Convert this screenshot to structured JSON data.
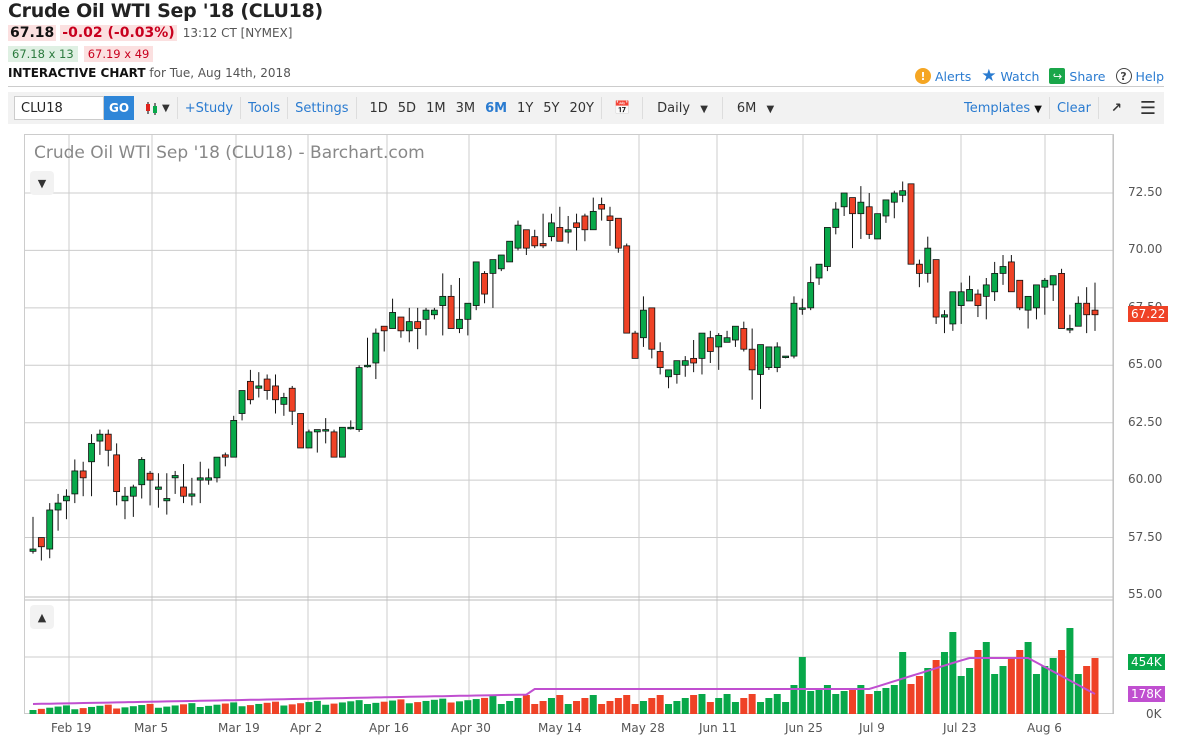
{
  "header": {
    "title": "Crude Oil WTI Sep '18 (CLU18)",
    "last": "67.18",
    "change": "-0.02 (-0.03%)",
    "time": "13:12 CT [NYMEX]",
    "bid": "67.18 x 13",
    "ask": "67.19 x 49",
    "chart_label": "INTERACTIVE CHART",
    "chart_for": "for Tue, Aug 14th, 2018"
  },
  "actions": {
    "alerts": "Alerts",
    "watch": "Watch",
    "share": "Share",
    "help": "Help"
  },
  "toolbar": {
    "symbol_value": "CLU18",
    "go": "GO",
    "study": "+Study",
    "tools": "Tools",
    "settings": "Settings",
    "periods": [
      "1D",
      "5D",
      "1M",
      "3M",
      "6M",
      "1Y",
      "5Y",
      "20Y"
    ],
    "active_period": "6M",
    "interval": "Daily",
    "range": "6M",
    "templates": "Templates",
    "clear": "Clear"
  },
  "chart": {
    "title": "Crude Oil WTI Sep '18 (CLU18) - Barchart.com",
    "price_axis": [
      "72.50",
      "70.00",
      "67.50",
      "65.00",
      "62.50",
      "60.00",
      "57.50",
      "55.00"
    ],
    "last_price_tag": "67.22",
    "volume_tag": "454K",
    "volume_avg_tag": "178K",
    "volume_zero": "0K",
    "x_axis": [
      "Feb 19",
      "Mar 5",
      "Mar 19",
      "Apr 2",
      "Apr 16",
      "Apr 30",
      "May 14",
      "May 28",
      "Jun 11",
      "Jun 25",
      "Jul 9",
      "Jul 23",
      "Aug 6"
    ],
    "colors": {
      "up": "#08a84a",
      "down": "#ef4226",
      "avg": "#c04fd0",
      "grid": "#cccccc"
    }
  },
  "chart_data": {
    "type": "candlestick",
    "title": "Crude Oil WTI Sep '18 (CLU18) - Barchart.com",
    "ylim": [
      55,
      73.5
    ],
    "x_ticks": [
      "Feb 19",
      "Mar 5",
      "Mar 19",
      "Apr 2",
      "Apr 16",
      "Apr 30",
      "May 14",
      "May 28",
      "Jun 11",
      "Jun 25",
      "Jul 9",
      "Jul 23",
      "Aug 6"
    ],
    "ohlc": [
      [
        56.9,
        58.4,
        56.8,
        57.0
      ],
      [
        57.5,
        57.5,
        56.5,
        57.1
      ],
      [
        57.0,
        59.0,
        56.6,
        58.7
      ],
      [
        58.7,
        59.4,
        57.8,
        59.0
      ],
      [
        59.1,
        59.6,
        58.3,
        59.3
      ],
      [
        59.4,
        60.9,
        59.0,
        60.4
      ],
      [
        60.4,
        60.8,
        59.3,
        60.1
      ],
      [
        60.8,
        62.0,
        59.3,
        61.6
      ],
      [
        61.7,
        62.2,
        61.1,
        62.0
      ],
      [
        62.0,
        62.2,
        60.6,
        61.3
      ],
      [
        61.1,
        61.6,
        58.9,
        59.5
      ],
      [
        59.1,
        59.7,
        58.3,
        59.3
      ],
      [
        59.3,
        59.8,
        58.4,
        59.7
      ],
      [
        59.8,
        61.0,
        59.2,
        60.9
      ],
      [
        60.3,
        60.4,
        58.9,
        60.0
      ],
      [
        59.6,
        60.3,
        58.8,
        59.7
      ],
      [
        59.1,
        60.3,
        58.5,
        59.2
      ],
      [
        60.1,
        60.4,
        59.4,
        60.2
      ],
      [
        59.7,
        60.7,
        59.0,
        59.3
      ],
      [
        59.3,
        60.1,
        58.9,
        59.4
      ],
      [
        60.0,
        60.8,
        59.0,
        60.1
      ],
      [
        60.0,
        60.5,
        59.8,
        60.1
      ],
      [
        60.1,
        60.8,
        59.9,
        61.0
      ],
      [
        61.1,
        61.2,
        60.6,
        61.0
      ],
      [
        61.0,
        62.8,
        61.0,
        62.6
      ],
      [
        62.9,
        63.9,
        62.6,
        63.9
      ],
      [
        64.3,
        64.8,
        63.3,
        63.5
      ],
      [
        64.0,
        64.7,
        63.6,
        64.1
      ],
      [
        64.4,
        64.6,
        63.5,
        63.9
      ],
      [
        64.1,
        64.6,
        62.9,
        63.5
      ],
      [
        63.3,
        63.8,
        62.8,
        63.6
      ],
      [
        64.0,
        64.1,
        62.4,
        63.0
      ],
      [
        62.9,
        62.9,
        61.5,
        61.4
      ],
      [
        61.4,
        62.2,
        61.4,
        62.1
      ],
      [
        62.1,
        62.1,
        61.2,
        62.2
      ],
      [
        62.2,
        62.7,
        61.6,
        62.2
      ],
      [
        62.1,
        62.2,
        61.0,
        61.0
      ],
      [
        61.0,
        62.3,
        61.0,
        62.3
      ],
      [
        62.3,
        62.6,
        62.2,
        62.3
      ],
      [
        62.2,
        65.0,
        62.1,
        64.9
      ],
      [
        65.0,
        66.2,
        64.9,
        65.0
      ],
      [
        65.1,
        66.6,
        64.4,
        66.4
      ],
      [
        66.7,
        66.7,
        65.6,
        66.5
      ],
      [
        66.6,
        67.9,
        66.8,
        67.3
      ],
      [
        67.1,
        67.1,
        66.2,
        66.5
      ],
      [
        66.5,
        67.5,
        66.0,
        66.9
      ],
      [
        66.9,
        67.5,
        65.7,
        66.6
      ],
      [
        67.0,
        67.5,
        66.3,
        67.4
      ],
      [
        67.2,
        67.5,
        67.0,
        67.4
      ],
      [
        67.6,
        69.0,
        66.3,
        68.0
      ],
      [
        68.0,
        68.5,
        66.7,
        66.6
      ],
      [
        66.6,
        68.8,
        66.4,
        67.0
      ],
      [
        67.0,
        67.5,
        66.3,
        67.7
      ],
      [
        67.6,
        69.1,
        67.4,
        69.5
      ],
      [
        69.0,
        69.1,
        67.7,
        68.1
      ],
      [
        69.0,
        69.0,
        67.5,
        69.6
      ],
      [
        69.2,
        69.5,
        69.1,
        69.8
      ],
      [
        69.5,
        70.3,
        69.6,
        70.4
      ],
      [
        70.1,
        71.3,
        70.0,
        71.1
      ],
      [
        70.9,
        70.3,
        69.8,
        70.1
      ],
      [
        70.6,
        70.9,
        70.1,
        70.2
      ],
      [
        70.3,
        71.6,
        70.1,
        70.2
      ],
      [
        70.6,
        71.6,
        70.4,
        71.2
      ],
      [
        71.0,
        71.9,
        70.7,
        70.4
      ],
      [
        70.8,
        71.5,
        70.3,
        70.9
      ],
      [
        71.2,
        71.6,
        70.0,
        71.0
      ],
      [
        71.5,
        71.6,
        70.4,
        70.9
      ],
      [
        70.9,
        72.3,
        70.9,
        71.7
      ],
      [
        72.0,
        72.3,
        71.3,
        71.8
      ],
      [
        71.5,
        71.9,
        70.2,
        71.3
      ],
      [
        71.4,
        71.4,
        69.9,
        70.1
      ],
      [
        70.2,
        70.3,
        67.3,
        66.4
      ],
      [
        66.4,
        66.5,
        65.9,
        65.3
      ],
      [
        66.2,
        68.0,
        65.8,
        67.4
      ],
      [
        67.5,
        67.3,
        65.3,
        65.7
      ],
      [
        65.6,
        66.0,
        64.6,
        64.9
      ],
      [
        64.5,
        64.4,
        64.0,
        64.8
      ],
      [
        64.6,
        65.2,
        64.2,
        65.2
      ],
      [
        65.0,
        65.4,
        64.5,
        65.2
      ],
      [
        65.3,
        66.1,
        64.7,
        65.1
      ],
      [
        65.3,
        66.0,
        64.6,
        66.4
      ],
      [
        66.2,
        66.5,
        65.1,
        65.6
      ],
      [
        65.8,
        66.4,
        64.8,
        66.3
      ],
      [
        66.0,
        66.5,
        66.0,
        66.2
      ],
      [
        66.1,
        66.4,
        65.8,
        66.7
      ],
      [
        66.6,
        66.9,
        65.6,
        65.7
      ],
      [
        65.7,
        66.6,
        63.5,
        64.8
      ],
      [
        64.6,
        65.1,
        63.1,
        65.9
      ],
      [
        64.9,
        65.6,
        64.8,
        65.8
      ],
      [
        64.9,
        66.0,
        64.7,
        65.8
      ],
      [
        65.4,
        65.4,
        65.3,
        65.4
      ],
      [
        65.4,
        68.0,
        65.3,
        67.7
      ],
      [
        67.5,
        67.9,
        67.2,
        67.5
      ],
      [
        67.5,
        69.3,
        67.4,
        68.6
      ],
      [
        68.8,
        68.3,
        68.5,
        69.4
      ],
      [
        69.3,
        70.3,
        69.1,
        71.0
      ],
      [
        71.0,
        72.1,
        70.7,
        71.8
      ],
      [
        71.9,
        72.5,
        71.5,
        72.5
      ],
      [
        72.3,
        72.3,
        70.1,
        71.6
      ],
      [
        71.6,
        72.8,
        70.5,
        72.1
      ],
      [
        71.9,
        72.5,
        70.5,
        70.7
      ],
      [
        70.5,
        71.3,
        70.6,
        71.6
      ],
      [
        71.5,
        72.2,
        71.2,
        72.2
      ],
      [
        72.1,
        72.6,
        71.4,
        72.5
      ],
      [
        72.4,
        73.0,
        72.1,
        72.6
      ],
      [
        72.9,
        72.9,
        70.0,
        69.4
      ],
      [
        69.4,
        69.6,
        68.4,
        69.0
      ],
      [
        69.0,
        70.6,
        68.6,
        70.1
      ],
      [
        69.6,
        69.6,
        66.8,
        67.1
      ],
      [
        67.1,
        67.4,
        66.4,
        67.2
      ],
      [
        66.8,
        68.0,
        66.5,
        68.2
      ],
      [
        67.6,
        68.6,
        66.8,
        68.2
      ],
      [
        67.8,
        68.9,
        67.8,
        68.3
      ],
      [
        68.1,
        68.3,
        67.1,
        67.6
      ],
      [
        68.0,
        68.8,
        67.0,
        68.5
      ],
      [
        68.2,
        69.5,
        67.8,
        69.0
      ],
      [
        69.0,
        69.8,
        68.5,
        69.3
      ],
      [
        69.5,
        69.8,
        68.4,
        68.2
      ],
      [
        68.7,
        68.3,
        67.4,
        67.5
      ],
      [
        67.4,
        67.0,
        66.6,
        68.0
      ],
      [
        67.5,
        68.2,
        67.0,
        68.5
      ],
      [
        68.4,
        68.8,
        67.2,
        68.7
      ],
      [
        68.5,
        68.9,
        67.8,
        68.9
      ],
      [
        69.0,
        69.2,
        67.8,
        66.6
      ],
      [
        66.6,
        67.2,
        66.4,
        66.6
      ],
      [
        66.7,
        68.0,
        66.8,
        67.7
      ],
      [
        67.7,
        68.4,
        66.4,
        67.2
      ],
      [
        67.4,
        68.6,
        66.5,
        67.2
      ]
    ],
    "volume_note": "volume bars (green=up, red=down) with purple moving average line; last volume 454K, avg 178K"
  }
}
